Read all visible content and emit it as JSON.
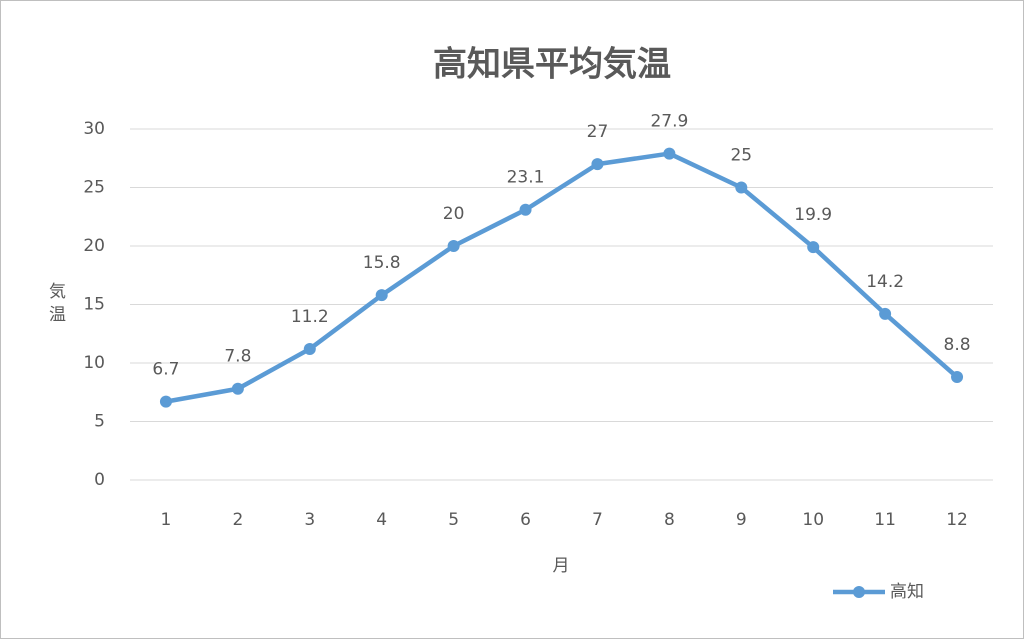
{
  "chart_data": {
    "type": "line",
    "title": "高知県平均気温",
    "x_label": "月",
    "y_label": "気温",
    "categories": [
      "1",
      "2",
      "3",
      "4",
      "5",
      "6",
      "7",
      "8",
      "9",
      "10",
      "11",
      "12"
    ],
    "series": [
      {
        "name": "高知",
        "color": "#5b9bd5",
        "values": [
          6.7,
          7.8,
          11.2,
          15.8,
          20,
          23.1,
          27,
          27.9,
          25,
          19.9,
          14.2,
          8.8
        ]
      }
    ],
    "ylim": [
      0,
      30
    ],
    "yticks": [
      0,
      5,
      10,
      15,
      20,
      25,
      30
    ],
    "grid": true,
    "legend": "bottom-right",
    "data_labels": true
  }
}
